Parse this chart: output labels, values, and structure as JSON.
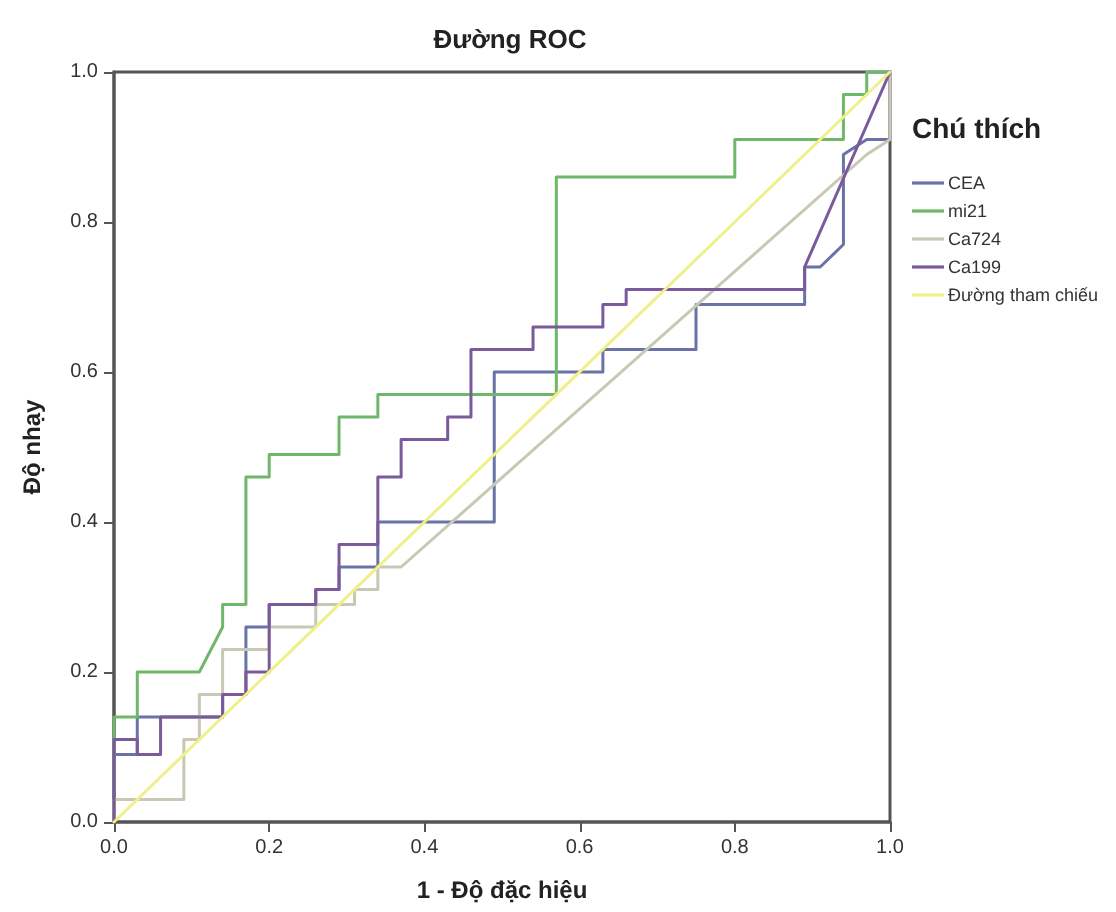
{
  "chart_data": {
    "type": "line",
    "title": "Đường ROC",
    "xlabel": "1 - Độ đặc hiệu",
    "ylabel": "Độ nhạy",
    "legend_title": "Chú thích",
    "legend": "right",
    "grid": false,
    "marker": "none",
    "line_style": "solid",
    "xlim": [
      0,
      1
    ],
    "ylim": [
      0,
      1
    ],
    "xticks": [
      {
        "value": 0,
        "label": "0.0"
      },
      {
        "value": 0.2,
        "label": "0.2"
      },
      {
        "value": 0.4,
        "label": "0.4"
      },
      {
        "value": 0.6,
        "label": "0.6"
      },
      {
        "value": 0.8,
        "label": "0.8"
      },
      {
        "value": 1,
        "label": "1.0"
      }
    ],
    "yticks": [
      {
        "value": 0,
        "label": "0.0"
      },
      {
        "value": 0.2,
        "label": "0.2"
      },
      {
        "value": 0.4,
        "label": "0.4"
      },
      {
        "value": 0.6,
        "label": "0.6"
      },
      {
        "value": 0.8,
        "label": "0.8"
      },
      {
        "value": 1,
        "label": "1.0"
      }
    ],
    "series": [
      {
        "name": "CEA",
        "color": "#6a73a8",
        "x": [
          0,
          0,
          0.03,
          0.03,
          0.14,
          0.14,
          0.17,
          0.17,
          0.2,
          0.2,
          0.26,
          0.26,
          0.29,
          0.29,
          0.34,
          0.34,
          0.49,
          0.49,
          0.63,
          0.63,
          0.75,
          0.75,
          0.89,
          0.89,
          0.91,
          0.94,
          0.94,
          0.97,
          1,
          1
        ],
        "values": [
          0,
          0.09,
          0.09,
          0.14,
          0.14,
          0.17,
          0.17,
          0.26,
          0.26,
          0.29,
          0.29,
          0.31,
          0.31,
          0.34,
          0.34,
          0.4,
          0.4,
          0.6,
          0.6,
          0.63,
          0.63,
          0.69,
          0.69,
          0.74,
          0.74,
          0.77,
          0.89,
          0.91,
          0.91,
          1
        ]
      },
      {
        "name": "mi21",
        "color": "#6fb86a",
        "x": [
          0,
          0,
          0.03,
          0.03,
          0.11,
          0.14,
          0.14,
          0.17,
          0.17,
          0.2,
          0.2,
          0.29,
          0.29,
          0.34,
          0.34,
          0.57,
          0.57,
          0.8,
          0.8,
          0.94,
          0.94,
          0.97,
          0.97,
          1
        ],
        "values": [
          0,
          0.14,
          0.14,
          0.2,
          0.2,
          0.26,
          0.29,
          0.29,
          0.46,
          0.46,
          0.49,
          0.49,
          0.54,
          0.54,
          0.57,
          0.57,
          0.86,
          0.86,
          0.91,
          0.91,
          0.97,
          0.97,
          1,
          1
        ]
      },
      {
        "name": "Ca724",
        "color": "#c8c8b4",
        "x": [
          0,
          0,
          0.09,
          0.09,
          0.11,
          0.11,
          0.14,
          0.14,
          0.2,
          0.2,
          0.26,
          0.26,
          0.31,
          0.31,
          0.34,
          0.34,
          0.37,
          0.97,
          1,
          1
        ],
        "values": [
          0,
          0.03,
          0.03,
          0.11,
          0.11,
          0.17,
          0.17,
          0.23,
          0.23,
          0.26,
          0.26,
          0.29,
          0.29,
          0.31,
          0.31,
          0.34,
          0.34,
          0.89,
          0.91,
          1
        ]
      },
      {
        "name": "Ca199",
        "color": "#7b5a9b",
        "x": [
          0,
          0,
          0.03,
          0.03,
          0.06,
          0.06,
          0.14,
          0.14,
          0.17,
          0.17,
          0.2,
          0.2,
          0.26,
          0.26,
          0.29,
          0.29,
          0.34,
          0.34,
          0.37,
          0.37,
          0.43,
          0.43,
          0.46,
          0.46,
          0.54,
          0.54,
          0.63,
          0.63,
          0.66,
          0.66,
          0.89,
          0.89,
          1
        ],
        "values": [
          0,
          0.11,
          0.11,
          0.09,
          0.09,
          0.14,
          0.14,
          0.17,
          0.17,
          0.2,
          0.2,
          0.29,
          0.29,
          0.31,
          0.31,
          0.37,
          0.37,
          0.46,
          0.46,
          0.51,
          0.51,
          0.54,
          0.54,
          0.63,
          0.63,
          0.66,
          0.66,
          0.69,
          0.69,
          0.71,
          0.71,
          0.74,
          1
        ]
      },
      {
        "name": "Đường tham chiếu",
        "color": "#f0f08a",
        "x": [
          0,
          1
        ],
        "values": [
          0,
          1
        ]
      }
    ]
  }
}
